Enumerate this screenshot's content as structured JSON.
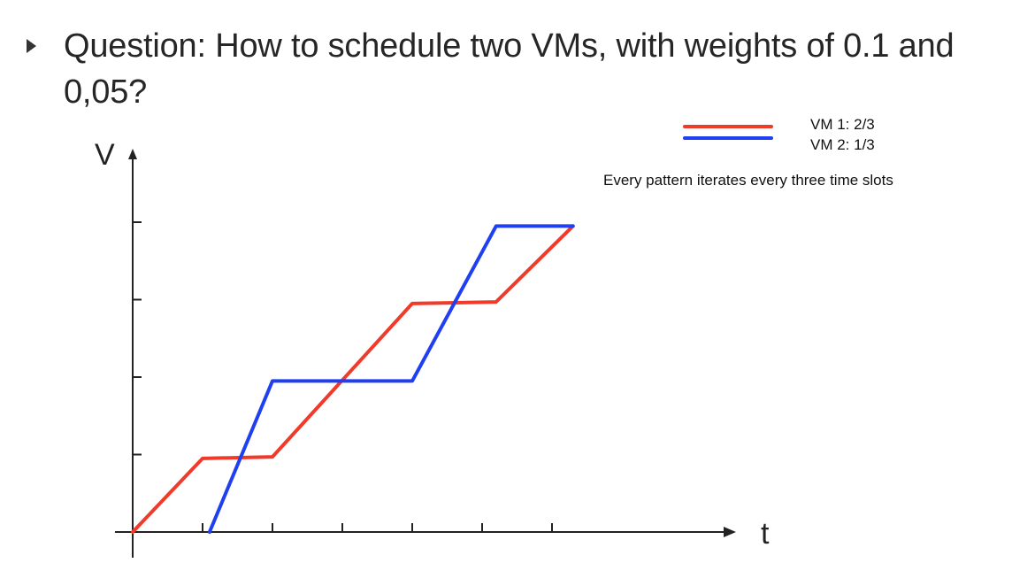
{
  "question": {
    "text": "Question: How to schedule two VMs, with weights of 0.1 and 0,05?",
    "bullet_icon": "triangle-bullet-icon"
  },
  "legend": {
    "items": [
      {
        "label": "VM 1: 2/3",
        "color": "#f03a2a"
      },
      {
        "label": "VM 2: 1/3",
        "color": "#1f3ff0"
      }
    ]
  },
  "note": "Every pattern iterates every three time slots",
  "chart_data": {
    "type": "line",
    "xlabel": "t",
    "ylabel": "V",
    "xlim": [
      0,
      8.9
    ],
    "ylim": [
      0,
      4
    ],
    "x_ticks": [
      1,
      2,
      3,
      4,
      5,
      6
    ],
    "y_ticks": [
      1,
      2,
      3,
      4
    ],
    "grid": false,
    "legend_position": "top-right",
    "series": [
      {
        "name": "VM 1: 2/3",
        "color": "#f03a2a",
        "points": [
          [
            0,
            0
          ],
          [
            1,
            0.95
          ],
          [
            2,
            0.97
          ],
          [
            4,
            2.95
          ],
          [
            5.2,
            2.97
          ],
          [
            6.3,
            3.95
          ]
        ]
      },
      {
        "name": "VM 2: 1/3",
        "color": "#1f3ff0",
        "points": [
          [
            1.1,
            0
          ],
          [
            2,
            1.95
          ],
          [
            4,
            1.95
          ],
          [
            5.2,
            3.95
          ],
          [
            6.3,
            3.95
          ]
        ]
      }
    ]
  }
}
